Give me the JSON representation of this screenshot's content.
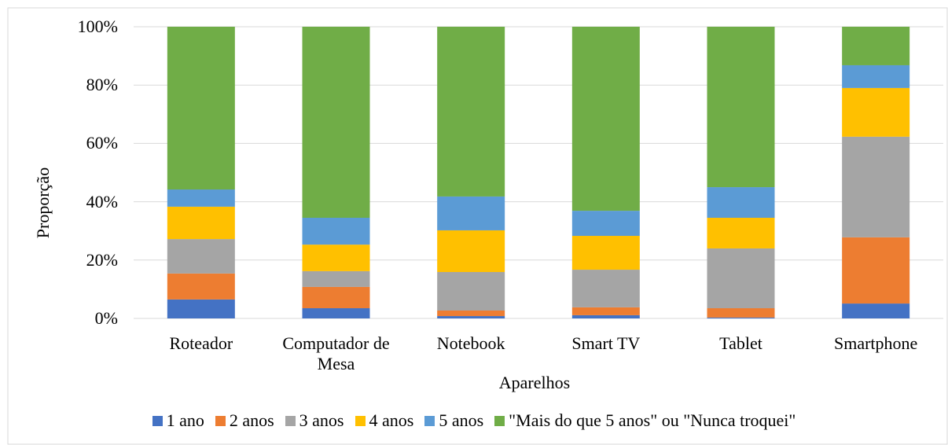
{
  "chart_data": {
    "type": "stacked_bar_percent",
    "x_label": "Aparelhos",
    "y_label": "Proporção",
    "categories": [
      "Roteador",
      "Computador de Mesa",
      "Notebook",
      "Smart TV",
      "Tablet",
      "Smartphone"
    ],
    "series": [
      {
        "name": "1 ano",
        "color": "#4472c4",
        "values": [
          6.5,
          3.5,
          0.8,
          1.1,
          0.3,
          5.1
        ]
      },
      {
        "name": "2 anos",
        "color": "#ed7d31",
        "values": [
          8.9,
          7.3,
          1.9,
          2.7,
          3.2,
          22.7
        ]
      },
      {
        "name": "3 anos",
        "color": "#a5a5a5",
        "values": [
          11.8,
          5.4,
          13.2,
          12.9,
          20.5,
          34.5
        ]
      },
      {
        "name": "4 anos",
        "color": "#ffc000",
        "values": [
          11.1,
          9.1,
          14.3,
          11.6,
          10.5,
          16.7
        ]
      },
      {
        "name": "5 anos",
        "color": "#5b9bd5",
        "values": [
          5.9,
          9.2,
          11.6,
          8.6,
          10.5,
          7.8
        ]
      },
      {
        "name": "\"Mais do que 5 anos\" ou \"Nunca troquei\"",
        "color": "#70ad47",
        "values": [
          55.8,
          65.5,
          58.2,
          63.1,
          55.0,
          13.2
        ]
      }
    ],
    "ylim": [
      0,
      100
    ],
    "yticks": [
      {
        "value": 0,
        "label": "0%"
      },
      {
        "value": 20,
        "label": "20%"
      },
      {
        "value": 40,
        "label": "40%"
      },
      {
        "value": 60,
        "label": "60%"
      },
      {
        "value": 80,
        "label": "80%"
      },
      {
        "value": 100,
        "label": "100%"
      }
    ],
    "grid": true,
    "legend": "bottom"
  }
}
